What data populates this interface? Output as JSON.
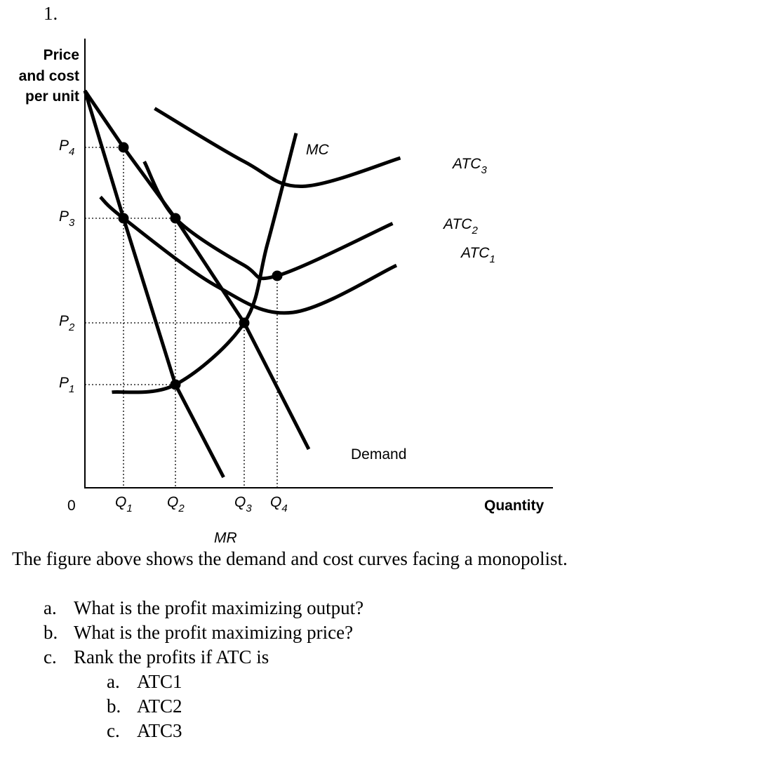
{
  "question_number": "1.",
  "chart_data": {
    "type": "line",
    "title": "",
    "ylabel": [
      "Price",
      "and cost",
      "per unit"
    ],
    "xlabel": "Quantity",
    "origin_label": "0",
    "y_ticks": [
      {
        "base": "P",
        "sub": "4"
      },
      {
        "base": "P",
        "sub": "3"
      },
      {
        "base": "P",
        "sub": "2"
      },
      {
        "base": "P",
        "sub": "1"
      }
    ],
    "x_ticks": [
      {
        "base": "Q",
        "sub": "1"
      },
      {
        "base": "Q",
        "sub": "2"
      },
      {
        "base": "Q",
        "sub": "3"
      },
      {
        "base": "Q",
        "sub": "4"
      }
    ],
    "x_values": {
      "Q1": 1,
      "Q2": 2,
      "Q3": 3,
      "Q4": 4
    },
    "y_values": {
      "P1": 1,
      "P2": 2,
      "P3": 3,
      "P4": 4
    },
    "series": [
      {
        "name": "Demand",
        "points": [
          [
            0,
            4.8
          ],
          [
            1,
            4
          ],
          [
            2,
            3
          ],
          [
            3,
            2
          ],
          [
            5,
            -0.2
          ]
        ]
      },
      {
        "name": "MR",
        "points": [
          [
            0,
            4.8
          ],
          [
            1,
            3
          ],
          [
            2,
            1
          ],
          [
            2.7,
            -0.6
          ]
        ]
      },
      {
        "name": "MC",
        "points": [
          [
            0.7,
            0.85
          ],
          [
            2,
            1
          ],
          [
            3,
            2
          ],
          [
            3.7,
            2.75
          ],
          [
            4.6,
            4.2
          ]
        ]
      },
      {
        "name": "ATC1",
        "points": [
          [
            0.4,
            3.3
          ],
          [
            1,
            3
          ],
          [
            2.6,
            2.35
          ],
          [
            4.5,
            2.1
          ],
          [
            7,
            2.55
          ]
        ]
      },
      {
        "name": "ATC2",
        "points": [
          [
            1.4,
            3.8
          ],
          [
            2,
            3
          ],
          [
            3,
            2.55
          ],
          [
            4,
            2.45
          ],
          [
            6.9,
            2.95
          ]
        ]
      },
      {
        "name": "ATC3",
        "points": [
          [
            1.6,
            4.55
          ],
          [
            3,
            3.8
          ],
          [
            4.8,
            3.45
          ],
          [
            7.1,
            3.85
          ]
        ]
      }
    ],
    "curve_labels": [
      {
        "base": "MC",
        "sub": ""
      },
      {
        "base": "ATC",
        "sub": "3"
      },
      {
        "base": "ATC",
        "sub": "2"
      },
      {
        "base": "ATC",
        "sub": "1"
      },
      {
        "base": "Demand",
        "sub": ""
      },
      {
        "base": "MR",
        "sub": ""
      }
    ],
    "intersections": [
      {
        "x": 1,
        "y": 4
      },
      {
        "x": 1,
        "y": 3
      },
      {
        "x": 2,
        "y": 3
      },
      {
        "x": 2,
        "y": 1
      },
      {
        "x": 3,
        "y": 2
      },
      {
        "x": 4,
        "y": 2.45
      }
    ]
  },
  "caption": "The figure above shows the demand and cost curves facing a monopolist.",
  "questions": [
    {
      "marker": "a.",
      "text": "What is the profit maximizing output?"
    },
    {
      "marker": "b.",
      "text": "What is the profit maximizing price?"
    },
    {
      "marker": "c.",
      "text": "Rank the profits if ATC is"
    }
  ],
  "sub_questions": [
    {
      "marker": "a.",
      "text": "ATC1"
    },
    {
      "marker": "b.",
      "text": "ATC2"
    },
    {
      "marker": "c.",
      "text": "ATC3"
    }
  ]
}
